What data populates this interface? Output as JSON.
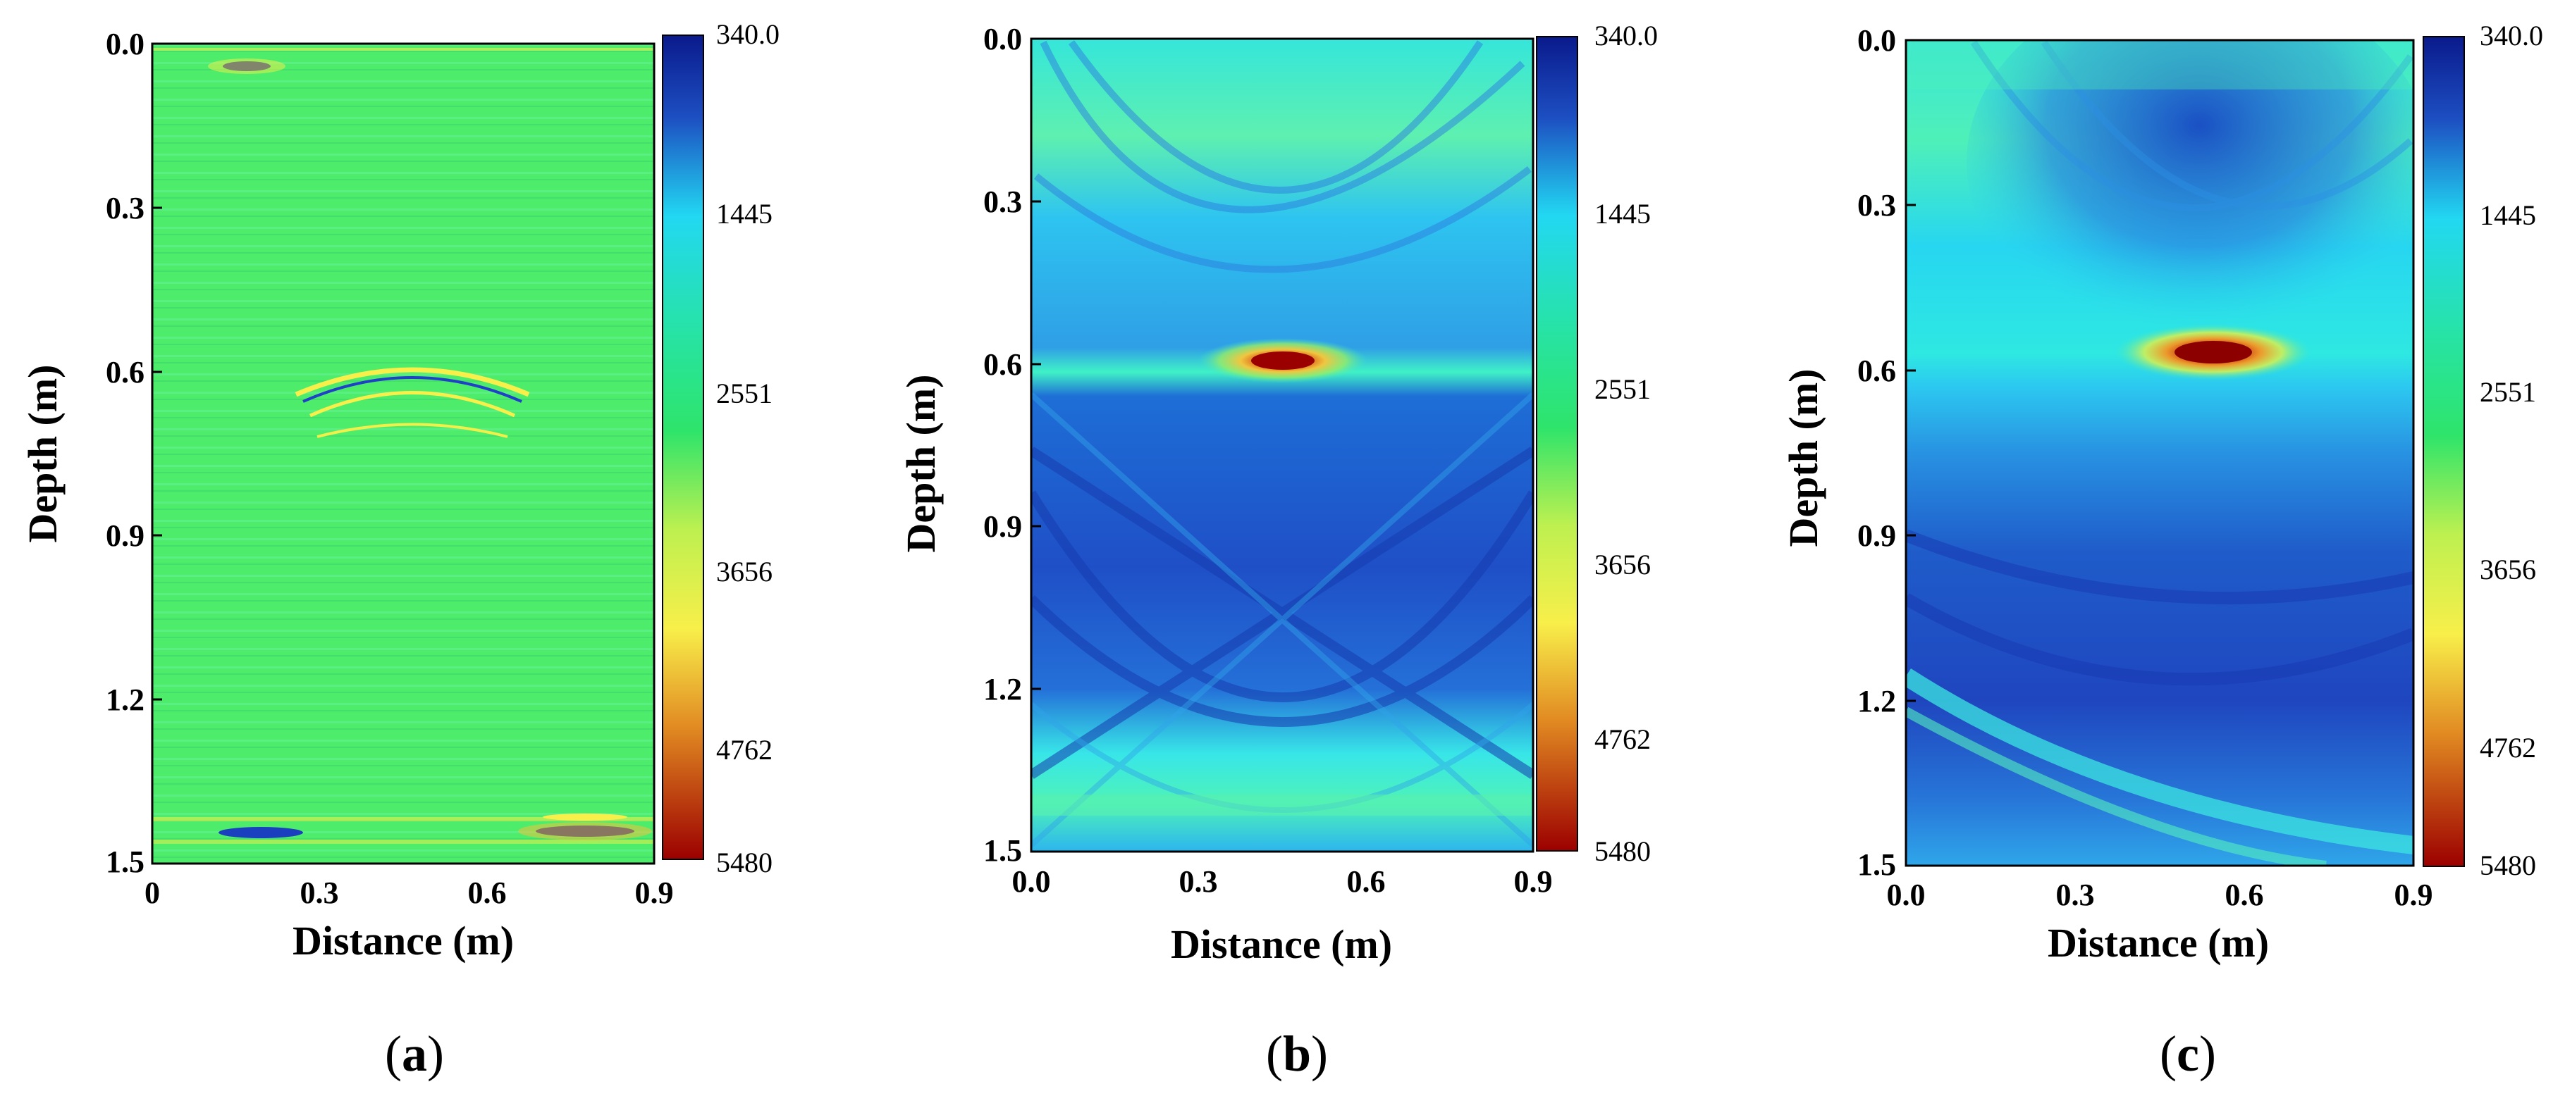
{
  "chart_data": [
    {
      "type": "heatmap",
      "panel_label": "a",
      "title": "",
      "xlabel": "Distance (m)",
      "ylabel": "Depth (m)",
      "xlim": [
        0,
        0.9
      ],
      "ylim": [
        1.5,
        0.0
      ],
      "x_ticks": [
        "0",
        "0.3",
        "0.6",
        "0.9"
      ],
      "y_ticks": [
        "0.0",
        "0.3",
        "0.6",
        "0.9",
        "1.2",
        "1.5"
      ],
      "colorbar": {
        "ticks": [
          "340.0",
          "1445",
          "2551",
          "3656",
          "4762",
          "5480"
        ],
        "range": [
          340.0,
          5480
        ],
        "colormap": [
          "#0a1a8c",
          "#1f6fd0",
          "#22e0f0",
          "#27e37a",
          "#f8f048",
          "#d96a1c",
          "#9c0000"
        ]
      },
      "description": "Original data: mostly uniform green background (~2700) with thin horizontal striations; hyperbolic reflection near depth 0.6 m around distance 0.45 m; strong anomalies at top (0.17 m, 0.0 m) and bottom (0.15 m and 0.8 m, ~1.43 m)."
    },
    {
      "type": "heatmap",
      "panel_label": "b",
      "title": "",
      "xlabel": "Distance (m)",
      "ylabel": "Depth (m)",
      "xlim": [
        0.0,
        0.9
      ],
      "ylim": [
        1.5,
        0.0
      ],
      "x_ticks": [
        "0.0",
        "0.3",
        "0.6",
        "0.9"
      ],
      "y_ticks": [
        "0.0",
        "0.3",
        "0.6",
        "0.9",
        "1.2",
        "1.5"
      ],
      "colorbar": {
        "ticks": [
          "340.0",
          "1445",
          "2551",
          "3656",
          "4762",
          "5480"
        ],
        "range": [
          340.0,
          5480
        ],
        "colormap": [
          "#0a1a8c",
          "#1f6fd0",
          "#22e0f0",
          "#27e37a",
          "#f8f048",
          "#d96a1c",
          "#9c0000"
        ]
      },
      "description": "Reconstruction: cyan/green upper region, blue cross-hatched body below ~0.62 m; hot anomaly (red/orange) at distance ~0.4 m, depth ~0.59 m; bright cyan band near 1.35 m."
    },
    {
      "type": "heatmap",
      "panel_label": "c",
      "title": "",
      "xlabel": "Distance (m)",
      "ylabel": "Depth (m)",
      "xlim": [
        0.0,
        0.9
      ],
      "ylim": [
        1.5,
        0.0
      ],
      "x_ticks": [
        "0.0",
        "0.3",
        "0.6",
        "0.9"
      ],
      "y_ticks": [
        "0.0",
        "0.3",
        "0.6",
        "0.9",
        "1.2",
        "1.5"
      ],
      "colorbar": {
        "ticks": [
          "340.0",
          "1445",
          "2551",
          "3656",
          "4762",
          "5480"
        ],
        "range": [
          340.0,
          5480
        ],
        "colormap": [
          "#0a1a8c",
          "#1f6fd0",
          "#22e0f0",
          "#27e37a",
          "#f8f048",
          "#d96a1c",
          "#9c0000"
        ]
      },
      "description": "Reconstruction: cyan/green upper region with a bowl-shaped blue zone, hot anomaly (dark red) at distance ~0.55 m, depth ~0.57 m; deep blue body below; cyan curved band sweeping down toward bottom right."
    }
  ]
}
